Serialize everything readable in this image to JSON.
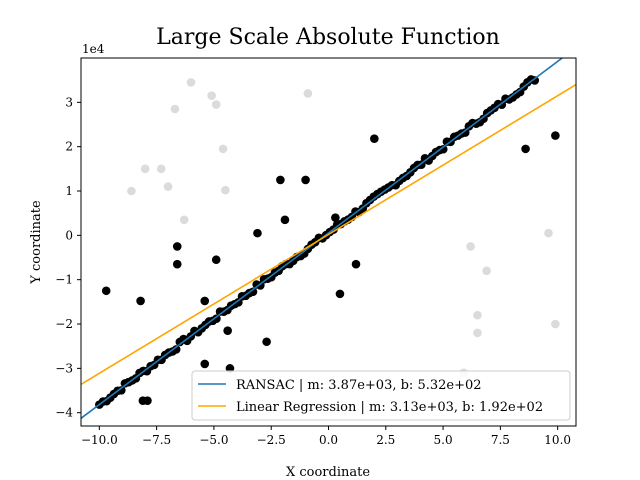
{
  "chart_data": {
    "type": "scatter",
    "title": "Large Scale Absolute Function",
    "xlabel": "X coordinate",
    "ylabel": "Y coordinate",
    "y_offset_label": "1e4",
    "xlim": [
      -10.8,
      10.8
    ],
    "ylim": [
      -43000,
      40000
    ],
    "x_ticks": [
      -10,
      -7.5,
      -5,
      -2.5,
      0,
      2.5,
      5,
      7.5,
      10
    ],
    "x_tick_labels": [
      "−10.0",
      "−7.5",
      "−5.0",
      "−2.5",
      "0.0",
      "2.5",
      "5.0",
      "7.5",
      "10.0"
    ],
    "y_ticks": [
      -40000,
      -30000,
      -20000,
      -10000,
      0,
      10000,
      20000,
      30000
    ],
    "y_tick_labels": [
      "−4",
      "−3",
      "−2",
      "−1",
      "0",
      "1",
      "2",
      "3"
    ],
    "legend_position": "lower-right",
    "colors": {
      "inliers": "#000000",
      "outliers": "#d9d9d9",
      "ransac": "#1f77b4",
      "linear": "#ffa500"
    },
    "lines": [
      {
        "name": "RANSAC | m: 3.87e+03, b: 5.32e+02",
        "slope": 3870,
        "intercept": 532,
        "color": "#1f77b4"
      },
      {
        "name": "Linear Regression | m: 3.13e+03, b: 1.92e+02",
        "slope": 3130,
        "intercept": 192,
        "color": "#ffa500"
      }
    ],
    "inlier_band": {
      "x_range": [
        -10.0,
        9.0
      ],
      "count": 120,
      "slope": 3870,
      "intercept": 532
    },
    "inlier_extra_points": [
      [
        -9.7,
        -12500
      ],
      [
        -8.2,
        -14800
      ],
      [
        -8.1,
        -37300
      ],
      [
        -7.9,
        -37300
      ],
      [
        -6.6,
        -2500
      ],
      [
        -6.6,
        -6500
      ],
      [
        -5.4,
        -14800
      ],
      [
        -5.4,
        -29000
      ],
      [
        -4.9,
        -5500
      ],
      [
        -4.4,
        -21500
      ],
      [
        -4.3,
        -30000
      ],
      [
        -3.1,
        500
      ],
      [
        -2.7,
        -24000
      ],
      [
        -2.1,
        12500
      ],
      [
        -1.9,
        3500
      ],
      [
        -1.0,
        12500
      ],
      [
        0.3,
        4000
      ],
      [
        0.5,
        -13200
      ],
      [
        1.2,
        -6500
      ],
      [
        2.0,
        21800
      ],
      [
        8.6,
        19500
      ],
      [
        9.9,
        22500
      ]
    ],
    "outlier_points": [
      [
        -8.6,
        10000
      ],
      [
        -8.0,
        15000
      ],
      [
        -7.3,
        15000
      ],
      [
        -7.0,
        11000
      ],
      [
        -6.7,
        28500
      ],
      [
        -6.3,
        3500
      ],
      [
        -6.0,
        34500
      ],
      [
        -5.1,
        31500
      ],
      [
        -4.9,
        29500
      ],
      [
        -4.6,
        19500
      ],
      [
        -4.5,
        10200
      ],
      [
        -0.9,
        32000
      ],
      [
        5.9,
        -31000
      ],
      [
        6.2,
        -2500
      ],
      [
        6.5,
        -18000
      ],
      [
        6.5,
        -22000
      ],
      [
        6.9,
        -8000
      ],
      [
        9.6,
        500
      ],
      [
        9.9,
        -20000
      ]
    ]
  }
}
